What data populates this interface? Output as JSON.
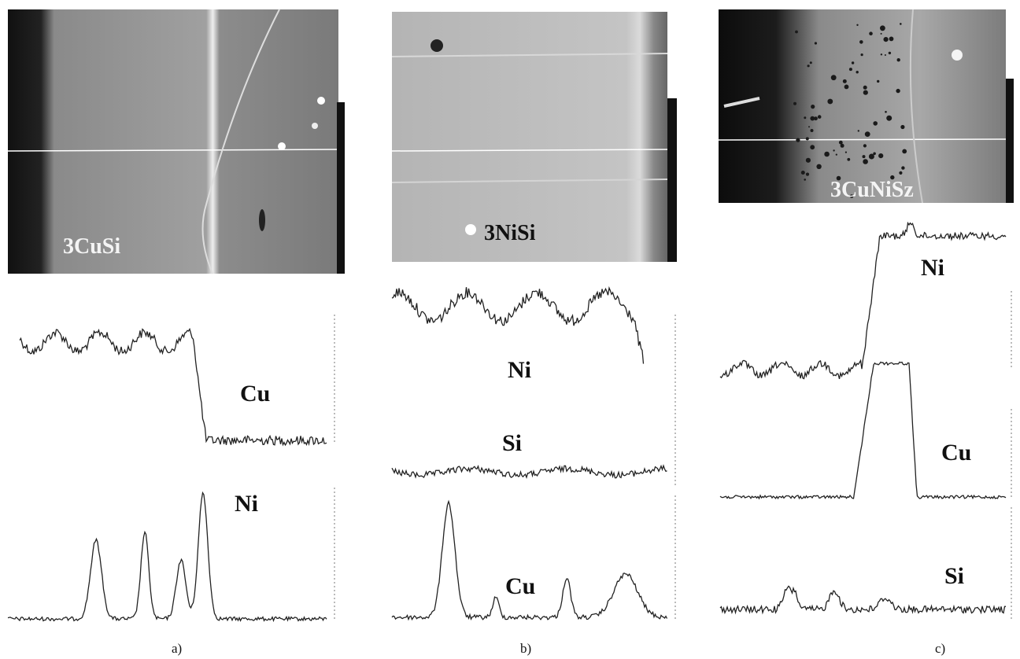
{
  "panels": [
    {
      "caption": "a)",
      "image_label": "3CuSi",
      "traces": [
        "Cu",
        "Ni"
      ]
    },
    {
      "caption": "b)",
      "image_label": "3NiSi",
      "traces": [
        "Ni",
        "Si",
        "Cu"
      ]
    },
    {
      "caption": "c)",
      "image_label": "3CuNiSz",
      "traces": [
        "Ni",
        "Cu",
        "Si"
      ]
    }
  ]
}
